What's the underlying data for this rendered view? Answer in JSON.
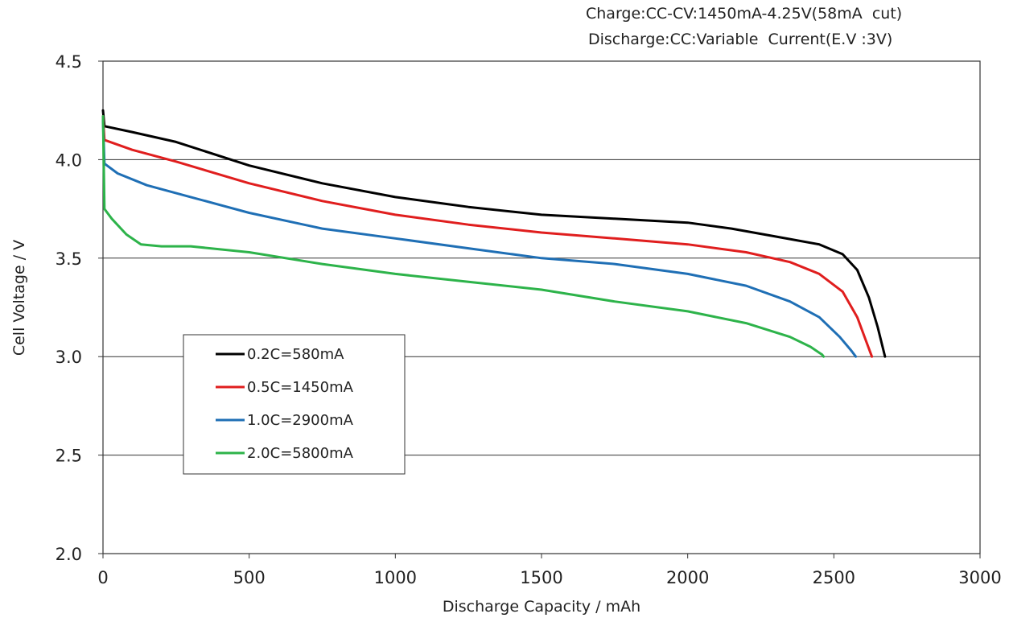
{
  "notes": {
    "charge": "Charge:CC-CV:1450mA-4.25V(58mA  cut)",
    "discharge": "Discharge:CC:Variable  Current(E.V :3V)"
  },
  "chart_data": {
    "type": "line",
    "xlabel": "Discharge  Capacity  / mAh",
    "ylabel": "Cell  Voltage  / V",
    "xlim": [
      0,
      3000
    ],
    "ylim": [
      2.0,
      4.5
    ],
    "x_ticks": [
      "0",
      "500",
      "1000",
      "1500",
      "2000",
      "2500",
      "3000"
    ],
    "y_ticks": [
      "2.0",
      "2.5",
      "3.0",
      "3.5",
      "4.0",
      "4.5"
    ],
    "grid": "horizontal",
    "legend_position": "lower-left",
    "series": [
      {
        "name": "0.2C=580mA",
        "color": "#000000",
        "points": [
          [
            0,
            4.25
          ],
          [
            5,
            4.17
          ],
          [
            100,
            4.14
          ],
          [
            250,
            4.09
          ],
          [
            500,
            3.97
          ],
          [
            750,
            3.88
          ],
          [
            1000,
            3.81
          ],
          [
            1250,
            3.76
          ],
          [
            1500,
            3.72
          ],
          [
            1750,
            3.7
          ],
          [
            2000,
            3.68
          ],
          [
            2150,
            3.65
          ],
          [
            2300,
            3.61
          ],
          [
            2450,
            3.57
          ],
          [
            2530,
            3.52
          ],
          [
            2580,
            3.44
          ],
          [
            2620,
            3.3
          ],
          [
            2650,
            3.15
          ],
          [
            2670,
            3.03
          ],
          [
            2675,
            3.0
          ]
        ]
      },
      {
        "name": "0.5C=1450mA",
        "color": "#e01e1e",
        "points": [
          [
            0,
            4.22
          ],
          [
            5,
            4.1
          ],
          [
            100,
            4.05
          ],
          [
            250,
            3.99
          ],
          [
            500,
            3.88
          ],
          [
            750,
            3.79
          ],
          [
            1000,
            3.72
          ],
          [
            1250,
            3.67
          ],
          [
            1500,
            3.63
          ],
          [
            1750,
            3.6
          ],
          [
            2000,
            3.57
          ],
          [
            2200,
            3.53
          ],
          [
            2350,
            3.48
          ],
          [
            2450,
            3.42
          ],
          [
            2530,
            3.33
          ],
          [
            2580,
            3.2
          ],
          [
            2610,
            3.08
          ],
          [
            2630,
            3.0
          ]
        ]
      },
      {
        "name": "1.0C=2900mA",
        "color": "#1f6fb5",
        "points": [
          [
            0,
            4.2
          ],
          [
            5,
            3.98
          ],
          [
            50,
            3.93
          ],
          [
            150,
            3.87
          ],
          [
            300,
            3.81
          ],
          [
            500,
            3.73
          ],
          [
            750,
            3.65
          ],
          [
            1000,
            3.6
          ],
          [
            1250,
            3.55
          ],
          [
            1500,
            3.5
          ],
          [
            1750,
            3.47
          ],
          [
            2000,
            3.42
          ],
          [
            2200,
            3.36
          ],
          [
            2350,
            3.28
          ],
          [
            2450,
            3.2
          ],
          [
            2520,
            3.1
          ],
          [
            2560,
            3.03
          ],
          [
            2575,
            3.0
          ]
        ]
      },
      {
        "name": "2.0C=5800mA",
        "color": "#2db34a",
        "points": [
          [
            0,
            4.22
          ],
          [
            5,
            3.75
          ],
          [
            30,
            3.7
          ],
          [
            80,
            3.62
          ],
          [
            130,
            3.57
          ],
          [
            200,
            3.56
          ],
          [
            300,
            3.56
          ],
          [
            500,
            3.53
          ],
          [
            750,
            3.47
          ],
          [
            1000,
            3.42
          ],
          [
            1250,
            3.38
          ],
          [
            1500,
            3.34
          ],
          [
            1750,
            3.28
          ],
          [
            2000,
            3.23
          ],
          [
            2200,
            3.17
          ],
          [
            2350,
            3.1
          ],
          [
            2420,
            3.05
          ],
          [
            2460,
            3.01
          ],
          [
            2465,
            3.0
          ]
        ]
      }
    ]
  }
}
